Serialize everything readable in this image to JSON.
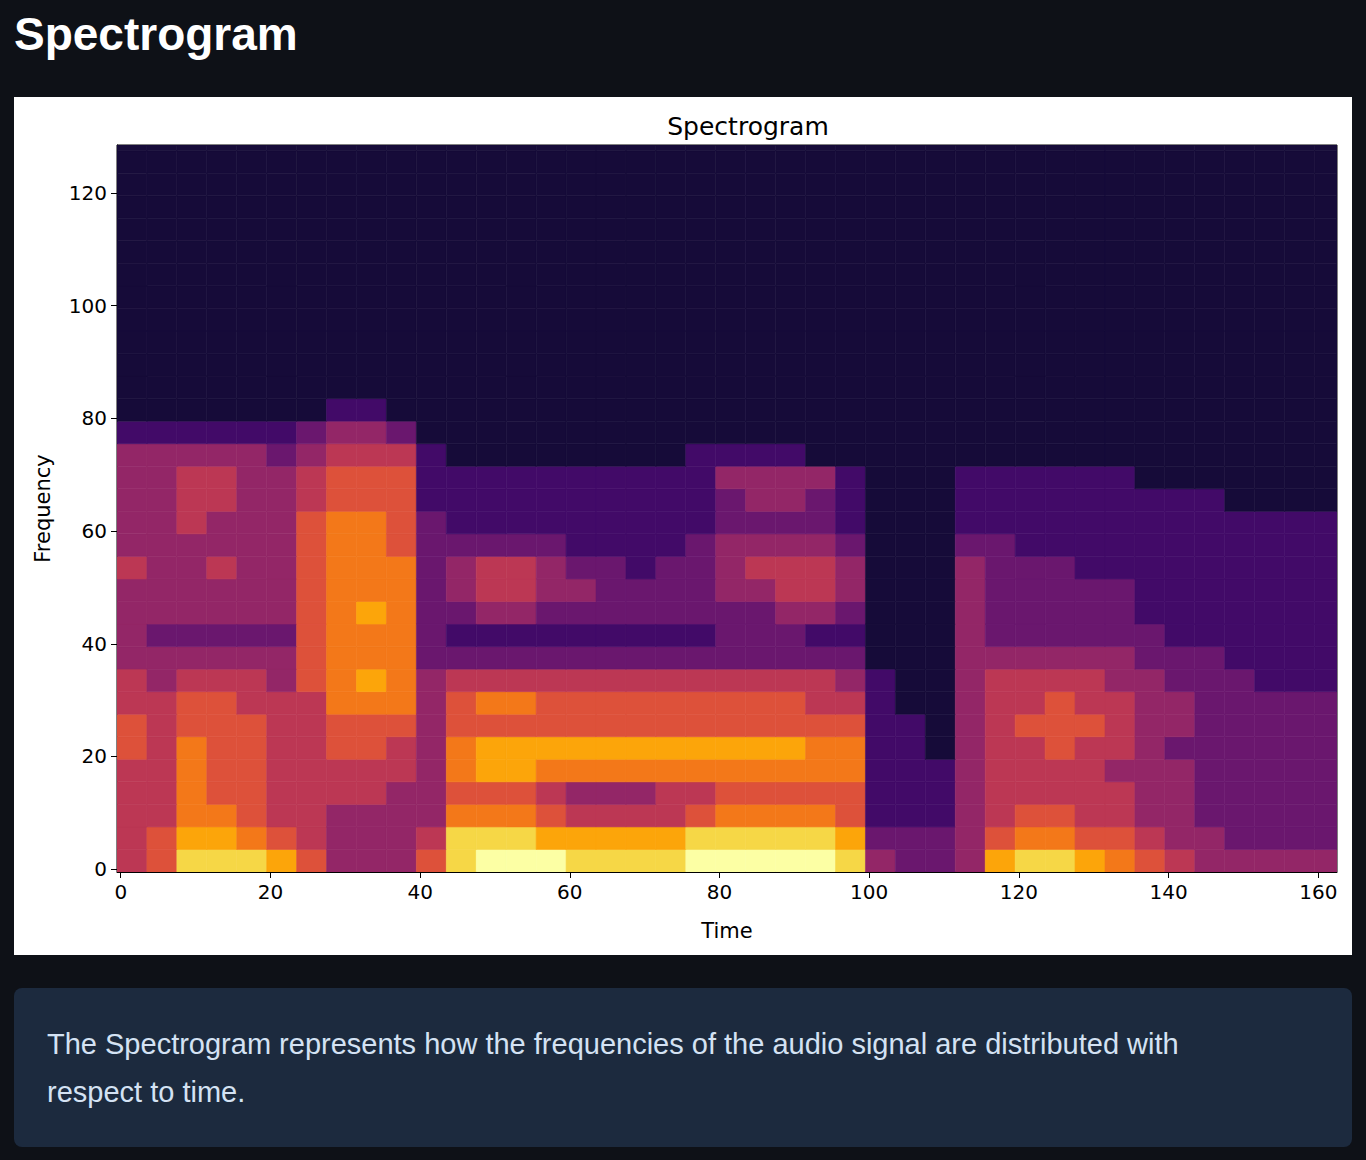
{
  "page": {
    "heading": "Spectrogram",
    "caption": "The Spectrogram represents how the frequencies of the audio signal are distributed with respect to time."
  },
  "chart_data": {
    "type": "heatmap",
    "title": "Spectrogram",
    "x_label": "Time",
    "y_label": "Frequency",
    "xlim": [
      -0.5,
      162.5
    ],
    "ylim": [
      -0.5,
      128.5
    ],
    "xticks": [
      0,
      20,
      40,
      60,
      80,
      100,
      120,
      140,
      160
    ],
    "yticks": [
      0,
      20,
      40,
      60,
      80,
      100,
      120
    ],
    "grid": false,
    "vlim": [
      0,
      10
    ],
    "x_edges": [
      -0.5,
      3.5,
      7.5,
      11.5,
      15.5,
      19.5,
      23.5,
      27.5,
      31.5,
      35.5,
      39.5,
      43.5,
      47.5,
      51.5,
      55.5,
      59.5,
      63.5,
      67.5,
      71.5,
      75.5,
      79.5,
      83.5,
      87.5,
      91.5,
      95.5,
      99.5,
      103.5,
      107.5,
      111.5,
      115.5,
      119.5,
      123.5,
      127.5,
      131.5,
      135.5,
      139.5,
      143.5,
      147.5,
      151.5,
      155.5,
      159.5,
      162.5
    ],
    "y_edges": [
      -0.5,
      3.5,
      7.5,
      11.5,
      15.5,
      19.5,
      23.5,
      27.5,
      31.5,
      35.5,
      39.5,
      43.5,
      47.5,
      51.5,
      55.5,
      59.5,
      63.5,
      67.5,
      71.5,
      75.5,
      79.5,
      83.5,
      87.5,
      91.5,
      95.5,
      99.5,
      103.5,
      107.5,
      111.5,
      115.5,
      119.5,
      123.5,
      127.5,
      128.5
    ],
    "values": [
      [
        5,
        6,
        9,
        9,
        9,
        8,
        6,
        4,
        4,
        4,
        6,
        9,
        10,
        10,
        10,
        9,
        9,
        9,
        9,
        10,
        10,
        10,
        10,
        10,
        9,
        4,
        3,
        3,
        4,
        8,
        9,
        9,
        8,
        7,
        6,
        5,
        4,
        4,
        4,
        4,
        4
      ],
      [
        5,
        6,
        8,
        8,
        7,
        6,
        5,
        4,
        4,
        4,
        5,
        9,
        9,
        9,
        8,
        8,
        8,
        8,
        8,
        9,
        9,
        9,
        9,
        9,
        8,
        3,
        3,
        3,
        4,
        6,
        7,
        7,
        6,
        6,
        5,
        4,
        4,
        3,
        3,
        3,
        3
      ],
      [
        5,
        5,
        7,
        7,
        6,
        5,
        5,
        4,
        4,
        4,
        4,
        7,
        7,
        7,
        6,
        5,
        5,
        5,
        5,
        6,
        7,
        7,
        7,
        7,
        6,
        2,
        2,
        2,
        4,
        5,
        6,
        6,
        5,
        5,
        4,
        4,
        3,
        3,
        3,
        3,
        3
      ],
      [
        5,
        5,
        7,
        6,
        6,
        5,
        5,
        5,
        5,
        4,
        4,
        6,
        6,
        6,
        5,
        4,
        4,
        4,
        5,
        5,
        6,
        6,
        6,
        6,
        6,
        2,
        2,
        2,
        4,
        5,
        5,
        5,
        5,
        5,
        4,
        4,
        3,
        3,
        3,
        3,
        3
      ],
      [
        5,
        5,
        7,
        6,
        6,
        5,
        5,
        5,
        5,
        5,
        4,
        7,
        8,
        8,
        7,
        7,
        7,
        7,
        7,
        7,
        7,
        7,
        7,
        7,
        7,
        2,
        2,
        2,
        4,
        5,
        5,
        5,
        5,
        4,
        4,
        4,
        3,
        3,
        3,
        3,
        3
      ],
      [
        6,
        5,
        7,
        6,
        6,
        5,
        5,
        6,
        6,
        5,
        4,
        7,
        8,
        8,
        8,
        8,
        8,
        8,
        8,
        8,
        8,
        8,
        8,
        7,
        7,
        2,
        2,
        1,
        4,
        5,
        5,
        6,
        5,
        5,
        4,
        3,
        3,
        3,
        3,
        3,
        3
      ],
      [
        6,
        5,
        6,
        6,
        6,
        5,
        5,
        6,
        6,
        6,
        4,
        6,
        6,
        6,
        6,
        6,
        6,
        6,
        6,
        6,
        6,
        6,
        6,
        6,
        6,
        2,
        2,
        1,
        4,
        5,
        6,
        6,
        6,
        5,
        4,
        4,
        3,
        3,
        3,
        3,
        3
      ],
      [
        5,
        5,
        6,
        6,
        5,
        5,
        5,
        7,
        7,
        7,
        4,
        6,
        7,
        7,
        6,
        6,
        6,
        6,
        6,
        6,
        6,
        6,
        6,
        5,
        5,
        2,
        1,
        1,
        4,
        5,
        5,
        6,
        5,
        5,
        4,
        4,
        3,
        3,
        3,
        3,
        3
      ],
      [
        5,
        4,
        5,
        5,
        5,
        4,
        6,
        7,
        8,
        7,
        4,
        5,
        5,
        5,
        5,
        5,
        5,
        5,
        5,
        5,
        5,
        5,
        5,
        5,
        4,
        2,
        1,
        1,
        4,
        5,
        5,
        5,
        5,
        4,
        4,
        3,
        3,
        3,
        2,
        2,
        2
      ],
      [
        4,
        4,
        4,
        4,
        4,
        4,
        6,
        7,
        7,
        7,
        3,
        3,
        3,
        3,
        3,
        3,
        3,
        3,
        3,
        3,
        3,
        3,
        3,
        3,
        3,
        1,
        1,
        1,
        4,
        4,
        4,
        4,
        4,
        4,
        3,
        3,
        3,
        2,
        2,
        2,
        2
      ],
      [
        4,
        3,
        3,
        3,
        3,
        3,
        6,
        7,
        7,
        7,
        3,
        2,
        2,
        2,
        2,
        2,
        2,
        2,
        2,
        2,
        3,
        3,
        3,
        2,
        2,
        1,
        1,
        1,
        4,
        3,
        3,
        3,
        3,
        3,
        3,
        2,
        2,
        2,
        2,
        2,
        2
      ],
      [
        4,
        4,
        4,
        4,
        4,
        4,
        6,
        7,
        8,
        7,
        3,
        3,
        4,
        4,
        3,
        3,
        3,
        3,
        3,
        3,
        3,
        3,
        4,
        4,
        3,
        1,
        1,
        1,
        4,
        3,
        3,
        3,
        3,
        3,
        2,
        2,
        2,
        2,
        2,
        2,
        2
      ],
      [
        4,
        4,
        4,
        4,
        4,
        4,
        6,
        7,
        7,
        7,
        3,
        4,
        5,
        5,
        4,
        4,
        3,
        3,
        3,
        3,
        4,
        4,
        5,
        5,
        4,
        1,
        1,
        1,
        4,
        3,
        3,
        3,
        3,
        3,
        2,
        2,
        2,
        2,
        2,
        2,
        2
      ],
      [
        5,
        4,
        4,
        5,
        4,
        4,
        6,
        7,
        7,
        7,
        3,
        4,
        5,
        5,
        4,
        3,
        3,
        2,
        3,
        3,
        4,
        5,
        5,
        5,
        4,
        1,
        1,
        1,
        4,
        3,
        3,
        3,
        2,
        2,
        2,
        2,
        2,
        2,
        2,
        2,
        2
      ],
      [
        4,
        4,
        4,
        4,
        4,
        4,
        6,
        7,
        7,
        6,
        3,
        3,
        3,
        3,
        3,
        2,
        2,
        2,
        2,
        3,
        4,
        4,
        4,
        4,
        3,
        1,
        1,
        1,
        3,
        3,
        2,
        2,
        2,
        2,
        2,
        2,
        2,
        2,
        2,
        2,
        2
      ],
      [
        4,
        4,
        5,
        4,
        4,
        4,
        6,
        7,
        7,
        6,
        3,
        2,
        2,
        2,
        2,
        2,
        2,
        2,
        2,
        2,
        3,
        3,
        3,
        3,
        2,
        1,
        1,
        1,
        2,
        2,
        2,
        2,
        2,
        2,
        2,
        2,
        2,
        2,
        2,
        2,
        2
      ],
      [
        4,
        4,
        5,
        5,
        4,
        4,
        5,
        6,
        6,
        6,
        2,
        2,
        2,
        2,
        2,
        2,
        2,
        2,
        2,
        2,
        3,
        4,
        4,
        3,
        2,
        1,
        1,
        1,
        2,
        2,
        2,
        2,
        2,
        2,
        2,
        2,
        2,
        1,
        1,
        1,
        1
      ],
      [
        4,
        4,
        5,
        5,
        4,
        4,
        5,
        6,
        6,
        6,
        2,
        2,
        2,
        2,
        2,
        2,
        2,
        2,
        2,
        2,
        4,
        4,
        4,
        4,
        2,
        1,
        1,
        1,
        2,
        2,
        2,
        2,
        2,
        2,
        1,
        1,
        1,
        1,
        1,
        1,
        1
      ],
      [
        4,
        4,
        4,
        4,
        4,
        3,
        4,
        5,
        5,
        5,
        2,
        1,
        1,
        1,
        1,
        1,
        1,
        1,
        1,
        2,
        2,
        2,
        2,
        1,
        1,
        1,
        1,
        1,
        1,
        1,
        1,
        1,
        1,
        1,
        1,
        1,
        1,
        1,
        1,
        1,
        1
      ],
      [
        2,
        2,
        2,
        2,
        2,
        2,
        3,
        4,
        4,
        3,
        1,
        1,
        1,
        1,
        1,
        1,
        1,
        1,
        1,
        1,
        1,
        1,
        1,
        1,
        1,
        1,
        1,
        1,
        1,
        1,
        1,
        1,
        1,
        1,
        1,
        1,
        1,
        1,
        1,
        1,
        1
      ],
      [
        1,
        1,
        1,
        1,
        1,
        1,
        1,
        2,
        2,
        1,
        1,
        1,
        1,
        1,
        1,
        1,
        1,
        1,
        1,
        1,
        1,
        1,
        1,
        1,
        1,
        1,
        1,
        1,
        1,
        1,
        1,
        1,
        1,
        1,
        1,
        1,
        1,
        1,
        1,
        1,
        1
      ],
      [
        1,
        1,
        1,
        1,
        1,
        1,
        1,
        1,
        1,
        1,
        1,
        1,
        1,
        1,
        1,
        1,
        1,
        1,
        1,
        1,
        1,
        1,
        1,
        1,
        1,
        1,
        1,
        1,
        1,
        1,
        1,
        1,
        1,
        1,
        1,
        1,
        1,
        1,
        1,
        1,
        1
      ],
      [
        1,
        1,
        1,
        1,
        1,
        1,
        1,
        1,
        1,
        1,
        1,
        1,
        1,
        1,
        1,
        1,
        1,
        1,
        1,
        1,
        1,
        1,
        1,
        1,
        1,
        1,
        1,
        1,
        1,
        1,
        1,
        1,
        1,
        1,
        1,
        1,
        1,
        1,
        1,
        1,
        1
      ],
      [
        1,
        1,
        1,
        1,
        1,
        1,
        1,
        1,
        1,
        1,
        1,
        1,
        1,
        1,
        1,
        1,
        1,
        1,
        1,
        1,
        1,
        1,
        1,
        1,
        1,
        1,
        1,
        1,
        1,
        1,
        1,
        1,
        1,
        1,
        1,
        1,
        1,
        1,
        1,
        1,
        1
      ],
      [
        1,
        1,
        1,
        1,
        1,
        1,
        1,
        1,
        1,
        1,
        1,
        1,
        1,
        1,
        1,
        1,
        1,
        1,
        1,
        1,
        1,
        1,
        1,
        1,
        1,
        1,
        1,
        1,
        1,
        1,
        1,
        1,
        1,
        1,
        1,
        1,
        1,
        1,
        1,
        1,
        1
      ],
      [
        1,
        1,
        1,
        1,
        1,
        1,
        1,
        1,
        1,
        1,
        1,
        1,
        1,
        1,
        1,
        1,
        1,
        1,
        1,
        1,
        1,
        1,
        1,
        1,
        1,
        1,
        1,
        1,
        1,
        1,
        1,
        1,
        1,
        1,
        1,
        1,
        1,
        1,
        1,
        1,
        1
      ],
      [
        1,
        1,
        1,
        1,
        1,
        1,
        1,
        1,
        1,
        1,
        1,
        1,
        1,
        1,
        1,
        1,
        1,
        1,
        1,
        1,
        1,
        1,
        1,
        1,
        1,
        1,
        1,
        1,
        1,
        1,
        1,
        1,
        1,
        1,
        1,
        1,
        1,
        1,
        1,
        1,
        1
      ],
      [
        1,
        1,
        1,
        1,
        1,
        1,
        1,
        1,
        1,
        1,
        1,
        1,
        1,
        1,
        1,
        1,
        1,
        1,
        1,
        1,
        1,
        1,
        1,
        1,
        1,
        1,
        1,
        1,
        1,
        1,
        1,
        1,
        1,
        1,
        1,
        1,
        1,
        1,
        1,
        1,
        1
      ],
      [
        1,
        1,
        1,
        1,
        1,
        1,
        1,
        1,
        1,
        1,
        1,
        1,
        1,
        1,
        1,
        1,
        1,
        1,
        1,
        1,
        1,
        1,
        1,
        1,
        1,
        1,
        1,
        1,
        1,
        1,
        1,
        1,
        1,
        1,
        1,
        1,
        1,
        1,
        1,
        1,
        1
      ],
      [
        1,
        1,
        1,
        1,
        1,
        1,
        1,
        1,
        1,
        1,
        1,
        1,
        1,
        1,
        1,
        1,
        1,
        1,
        1,
        1,
        1,
        1,
        1,
        1,
        1,
        1,
        1,
        1,
        1,
        1,
        1,
        1,
        1,
        1,
        1,
        1,
        1,
        1,
        1,
        1,
        1
      ],
      [
        1,
        1,
        1,
        1,
        1,
        1,
        1,
        1,
        1,
        1,
        1,
        1,
        1,
        1,
        1,
        1,
        1,
        1,
        1,
        1,
        1,
        1,
        1,
        1,
        1,
        1,
        1,
        1,
        1,
        1,
        1,
        1,
        1,
        1,
        1,
        1,
        1,
        1,
        1,
        1,
        1
      ],
      [
        1,
        1,
        1,
        1,
        1,
        1,
        1,
        1,
        1,
        1,
        1,
        1,
        1,
        1,
        1,
        1,
        1,
        1,
        1,
        1,
        1,
        1,
        1,
        1,
        1,
        1,
        1,
        1,
        1,
        1,
        1,
        1,
        1,
        1,
        1,
        1,
        1,
        1,
        1,
        1,
        1
      ],
      [
        1,
        1,
        1,
        1,
        1,
        1,
        1,
        1,
        1,
        1,
        1,
        1,
        1,
        1,
        1,
        1,
        1,
        1,
        1,
        1,
        1,
        1,
        1,
        1,
        1,
        1,
        1,
        1,
        1,
        1,
        1,
        1,
        1,
        1,
        1,
        1,
        1,
        1,
        1,
        1,
        1
      ]
    ]
  }
}
